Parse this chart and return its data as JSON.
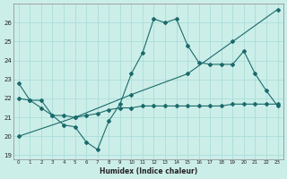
{
  "xlabel": "Humidex (Indice chaleur)",
  "bg_color": "#cceee8",
  "grid_color": "#aaddda",
  "line_color": "#1a6b6b",
  "xlim": [
    -0.5,
    23.5
  ],
  "ylim": [
    18.8,
    27.0
  ],
  "yticks": [
    19,
    20,
    21,
    22,
    23,
    24,
    25,
    26
  ],
  "xticks": [
    0,
    1,
    2,
    3,
    4,
    5,
    6,
    7,
    8,
    9,
    10,
    11,
    12,
    13,
    14,
    15,
    16,
    17,
    18,
    19,
    20,
    21,
    22,
    23
  ],
  "series1_x": [
    0,
    1,
    2,
    3,
    4,
    5,
    6,
    7,
    8,
    9,
    10,
    11,
    12,
    13,
    14,
    15,
    16,
    17,
    18,
    19,
    20,
    21,
    22,
    23
  ],
  "series1_y": [
    22.8,
    21.9,
    21.9,
    21.1,
    20.6,
    20.5,
    19.7,
    19.3,
    20.8,
    21.7,
    23.3,
    24.4,
    26.2,
    26.0,
    26.2,
    24.8,
    23.9,
    23.8,
    23.8,
    23.8,
    24.5,
    23.3,
    22.4,
    21.6
  ],
  "series2_x": [
    0,
    1,
    2,
    3,
    4,
    5,
    6,
    7,
    8,
    9,
    10,
    11,
    12,
    13,
    14,
    15,
    16,
    17,
    18,
    19,
    20,
    21,
    22,
    23
  ],
  "series2_y": [
    22.0,
    21.9,
    21.5,
    21.1,
    21.1,
    21.0,
    21.1,
    21.2,
    21.4,
    21.5,
    21.5,
    21.6,
    21.6,
    21.6,
    21.6,
    21.6,
    21.6,
    21.6,
    21.6,
    21.7,
    21.7,
    21.7,
    21.7,
    21.7
  ],
  "series3_x": [
    0,
    5,
    10,
    15,
    19,
    23
  ],
  "series3_y": [
    20.0,
    21.0,
    22.2,
    23.3,
    25.0,
    26.7
  ]
}
